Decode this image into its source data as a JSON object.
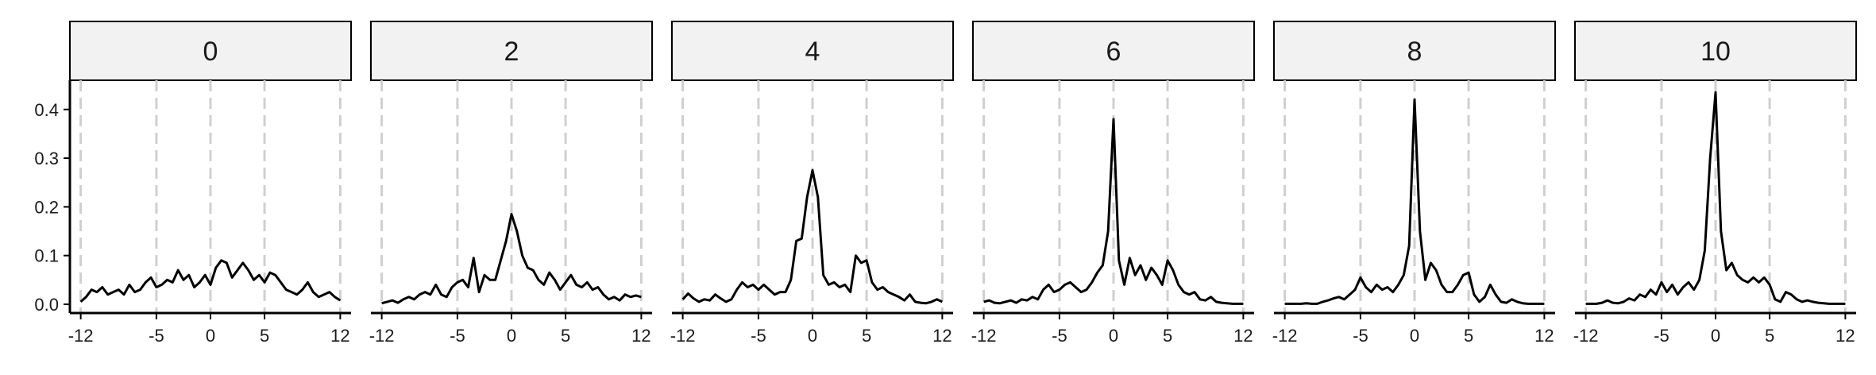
{
  "chart_data": {
    "type": "line",
    "facet_variable_values": [
      "0",
      "2",
      "4",
      "6",
      "8",
      "10"
    ],
    "title": "",
    "xlabel": "",
    "ylabel": "",
    "x_ticks": [
      -12,
      -5,
      0,
      5,
      12
    ],
    "x_tick_labels": [
      "-12",
      "-5",
      "0",
      "5",
      "12"
    ],
    "y_ticks": [
      0,
      0.1,
      0.2,
      0.3,
      0.4
    ],
    "y_tick_labels": [
      "0.0",
      "0.1",
      "0.2",
      "0.3",
      "0.4"
    ],
    "xlim": [
      -13,
      13
    ],
    "ylim": [
      -0.018,
      0.46
    ],
    "grid": "vertical dashed at x ticks",
    "line_color": "#000000",
    "grid_color": "#cfcfcf",
    "strip_fill": "#f2f2f2",
    "panels": [
      {
        "label": "0",
        "x": [
          -12,
          -11.5,
          -11,
          -10.5,
          -10,
          -9.5,
          -9,
          -8.5,
          -8,
          -7.5,
          -7,
          -6.5,
          -6,
          -5.5,
          -5,
          -4.5,
          -4,
          -3.5,
          -3,
          -2.5,
          -2,
          -1.5,
          -1,
          -0.5,
          0,
          0.5,
          1,
          1.5,
          2,
          2.5,
          3,
          3.5,
          4,
          4.5,
          5,
          5.5,
          6,
          6.5,
          7,
          7.5,
          8,
          8.5,
          9,
          9.5,
          10,
          10.5,
          11,
          11.5,
          12
        ],
        "y": [
          0.005,
          0.015,
          0.03,
          0.025,
          0.035,
          0.02,
          0.025,
          0.03,
          0.02,
          0.04,
          0.025,
          0.03,
          0.045,
          0.055,
          0.035,
          0.04,
          0.05,
          0.045,
          0.07,
          0.05,
          0.06,
          0.035,
          0.045,
          0.06,
          0.04,
          0.075,
          0.09,
          0.085,
          0.055,
          0.07,
          0.085,
          0.07,
          0.05,
          0.06,
          0.045,
          0.065,
          0.06,
          0.045,
          0.03,
          0.025,
          0.02,
          0.03,
          0.045,
          0.025,
          0.015,
          0.02,
          0.025,
          0.015,
          0.008
        ]
      },
      {
        "label": "2",
        "x": [
          -12,
          -11.5,
          -11,
          -10.5,
          -10,
          -9.5,
          -9,
          -8.5,
          -8,
          -7.5,
          -7,
          -6.5,
          -6,
          -5.5,
          -5,
          -4.5,
          -4,
          -3.5,
          -3,
          -2.5,
          -2,
          -1.5,
          -1,
          -0.5,
          0,
          0.5,
          1,
          1.5,
          2,
          2.5,
          3,
          3.5,
          4,
          4.5,
          5,
          5.5,
          6,
          6.5,
          7,
          7.5,
          8,
          8.5,
          9,
          9.5,
          10,
          10.5,
          11,
          11.5,
          12
        ],
        "y": [
          0.002,
          0.005,
          0.008,
          0.003,
          0.01,
          0.015,
          0.01,
          0.02,
          0.025,
          0.02,
          0.04,
          0.02,
          0.015,
          0.035,
          0.045,
          0.05,
          0.035,
          0.095,
          0.025,
          0.06,
          0.05,
          0.05,
          0.09,
          0.13,
          0.185,
          0.15,
          0.1,
          0.075,
          0.07,
          0.05,
          0.04,
          0.065,
          0.05,
          0.03,
          0.045,
          0.06,
          0.04,
          0.035,
          0.045,
          0.03,
          0.035,
          0.02,
          0.01,
          0.015,
          0.008,
          0.02,
          0.015,
          0.018,
          0.015
        ]
      },
      {
        "label": "4",
        "x": [
          -12,
          -11.5,
          -11,
          -10.5,
          -10,
          -9.5,
          -9,
          -8.5,
          -8,
          -7.5,
          -7,
          -6.5,
          -6,
          -5.5,
          -5,
          -4.5,
          -4,
          -3.5,
          -3,
          -2.5,
          -2,
          -1.5,
          -1,
          -0.5,
          0,
          0.5,
          1,
          1.5,
          2,
          2.5,
          3,
          3.5,
          4,
          4.5,
          5,
          5.5,
          6,
          6.5,
          7,
          7.5,
          8,
          8.5,
          9,
          9.5,
          10,
          10.5,
          11,
          11.5,
          12
        ],
        "y": [
          0.01,
          0.022,
          0.012,
          0.005,
          0.01,
          0.008,
          0.02,
          0.012,
          0.005,
          0.01,
          0.03,
          0.045,
          0.035,
          0.04,
          0.03,
          0.04,
          0.03,
          0.02,
          0.025,
          0.025,
          0.05,
          0.13,
          0.135,
          0.22,
          0.275,
          0.22,
          0.06,
          0.04,
          0.045,
          0.035,
          0.04,
          0.025,
          0.1,
          0.085,
          0.09,
          0.045,
          0.03,
          0.035,
          0.025,
          0.02,
          0.015,
          0.008,
          0.02,
          0.005,
          0.003,
          0.002,
          0.005,
          0.01,
          0.005
        ]
      },
      {
        "label": "6",
        "x": [
          -12,
          -11.5,
          -11,
          -10.5,
          -10,
          -9.5,
          -9,
          -8.5,
          -8,
          -7.5,
          -7,
          -6.5,
          -6,
          -5.5,
          -5,
          -4.5,
          -4,
          -3.5,
          -3,
          -2.5,
          -2,
          -1.5,
          -1,
          -0.5,
          0,
          0.5,
          1,
          1.5,
          2,
          2.5,
          3,
          3.5,
          4,
          4.5,
          5,
          5.5,
          6,
          6.5,
          7,
          7.5,
          8,
          8.5,
          9,
          9.5,
          10,
          10.5,
          11,
          11.5,
          12
        ],
        "y": [
          0.005,
          0.008,
          0.003,
          0.002,
          0.005,
          0.008,
          0.003,
          0.01,
          0.008,
          0.015,
          0.01,
          0.03,
          0.04,
          0.025,
          0.03,
          0.04,
          0.045,
          0.035,
          0.025,
          0.03,
          0.045,
          0.065,
          0.08,
          0.15,
          0.38,
          0.09,
          0.04,
          0.095,
          0.06,
          0.08,
          0.05,
          0.075,
          0.06,
          0.04,
          0.09,
          0.07,
          0.04,
          0.025,
          0.02,
          0.025,
          0.01,
          0.008,
          0.015,
          0.005,
          0.003,
          0.002,
          0.001,
          0.001,
          0.001
        ]
      },
      {
        "label": "8",
        "x": [
          -12,
          -11.5,
          -11,
          -10.5,
          -10,
          -9.5,
          -9,
          -8.5,
          -8,
          -7.5,
          -7,
          -6.5,
          -6,
          -5.5,
          -5,
          -4.5,
          -4,
          -3.5,
          -3,
          -2.5,
          -2,
          -1.5,
          -1,
          -0.5,
          0,
          0.5,
          1,
          1.5,
          2,
          2.5,
          3,
          3.5,
          4,
          4.5,
          5,
          5.5,
          6,
          6.5,
          7,
          7.5,
          8,
          8.5,
          9,
          9.5,
          10,
          10.5,
          11,
          11.5,
          12
        ],
        "y": [
          0.001,
          0.001,
          0.001,
          0.001,
          0.002,
          0.001,
          0.001,
          0.005,
          0.008,
          0.012,
          0.015,
          0.01,
          0.02,
          0.03,
          0.055,
          0.035,
          0.025,
          0.04,
          0.03,
          0.035,
          0.025,
          0.04,
          0.06,
          0.12,
          0.42,
          0.15,
          0.05,
          0.085,
          0.07,
          0.04,
          0.025,
          0.025,
          0.04,
          0.06,
          0.065,
          0.02,
          0.005,
          0.015,
          0.04,
          0.02,
          0.005,
          0.003,
          0.01,
          0.005,
          0.002,
          0.001,
          0.001,
          0.001,
          0.001
        ]
      },
      {
        "label": "10",
        "x": [
          -12,
          -11.5,
          -11,
          -10.5,
          -10,
          -9.5,
          -9,
          -8.5,
          -8,
          -7.5,
          -7,
          -6.5,
          -6,
          -5.5,
          -5,
          -4.5,
          -4,
          -3.5,
          -3,
          -2.5,
          -2,
          -1.5,
          -1,
          -0.5,
          0,
          0.5,
          1,
          1.5,
          2,
          2.5,
          3,
          3.5,
          4,
          4.5,
          5,
          5.5,
          6,
          6.5,
          7,
          7.5,
          8,
          8.5,
          9,
          9.5,
          10,
          10.5,
          11,
          11.5,
          12
        ],
        "y": [
          0.001,
          0.001,
          0.001,
          0.003,
          0.008,
          0.003,
          0.002,
          0.005,
          0.012,
          0.008,
          0.02,
          0.015,
          0.03,
          0.02,
          0.045,
          0.025,
          0.04,
          0.02,
          0.035,
          0.045,
          0.03,
          0.05,
          0.11,
          0.3,
          0.435,
          0.15,
          0.07,
          0.085,
          0.06,
          0.05,
          0.045,
          0.055,
          0.045,
          0.055,
          0.04,
          0.01,
          0.005,
          0.025,
          0.02,
          0.01,
          0.005,
          0.008,
          0.005,
          0.003,
          0.002,
          0.001,
          0.001,
          0.001,
          0.001
        ]
      }
    ]
  }
}
